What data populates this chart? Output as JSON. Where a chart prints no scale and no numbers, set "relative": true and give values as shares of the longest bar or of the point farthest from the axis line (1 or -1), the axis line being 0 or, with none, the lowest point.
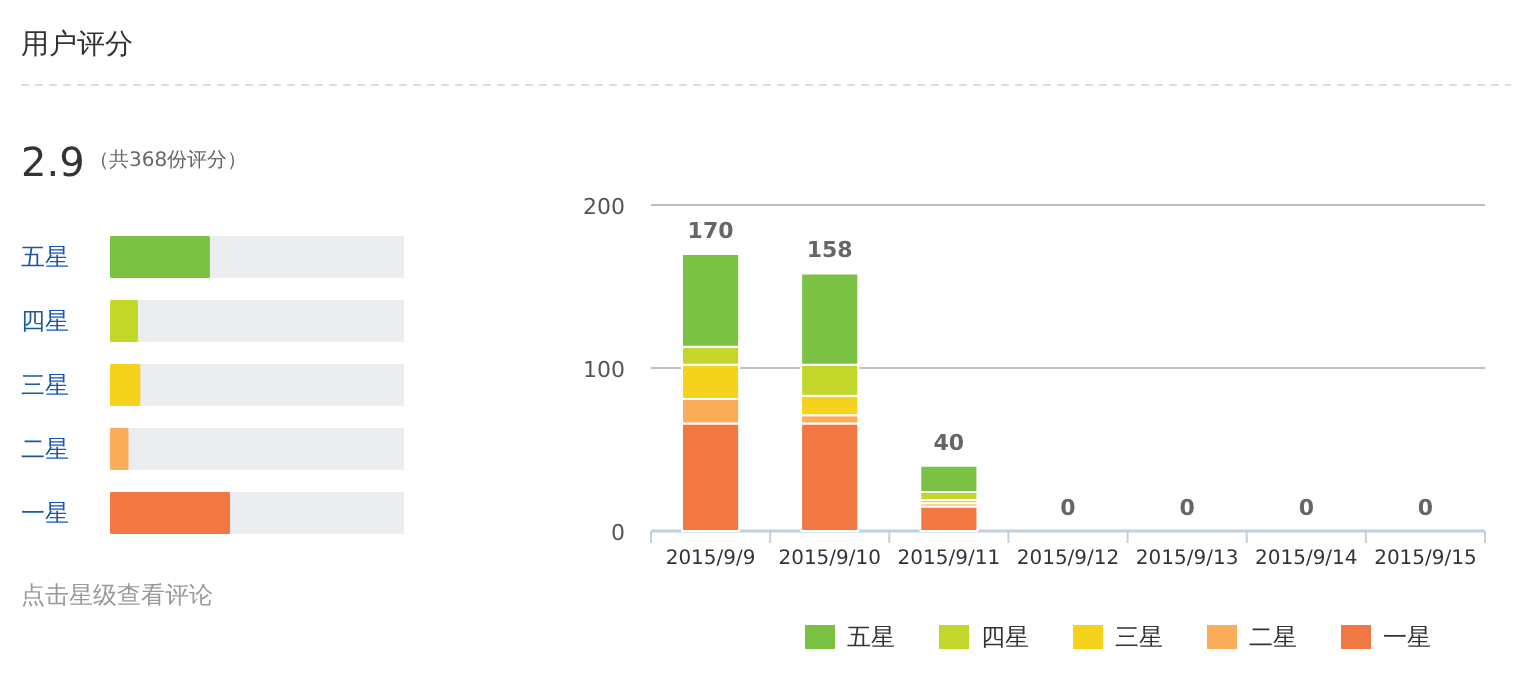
{
  "chart_data": [
    {
      "type": "other",
      "title": "用户评分"
    },
    {
      "type": "bar",
      "orientation": "horizontal",
      "relative": true,
      "title": "2.9",
      "subtitle": "（共368份评分）",
      "categories": [
        "五星",
        "四星",
        "三星",
        "二星",
        "一星"
      ],
      "values": [
        0.83,
        0.22,
        0.24,
        0.14,
        1
      ],
      "colors": [
        "#7bc143",
        "#c2d72a",
        "#f5d21c",
        "#fbad5a",
        "#f27843"
      ],
      "annotations": [
        "点击星级查看评论"
      ]
    },
    {
      "type": "bar",
      "stacked": true,
      "legend": "bottom",
      "grid": "y",
      "categories": [
        "2015/9/9",
        "2015/9/10",
        "2015/9/11",
        "2015/9/12",
        "2015/9/13",
        "2015/9/14",
        "2015/9/15"
      ],
      "ylim": [
        0,
        200
      ],
      "yticks": [
        0,
        100,
        200
      ],
      "series": [
        {
          "name": "一星",
          "color": "#f27843",
          "values": [
            66,
            66,
            15,
            0,
            0,
            0,
            0
          ]
        },
        {
          "name": "二星",
          "color": "#fbad5a",
          "values": [
            15,
            5,
            2,
            0,
            0,
            0,
            0
          ]
        },
        {
          "name": "三星",
          "color": "#f5d21c",
          "values": [
            21,
            12,
            2,
            0,
            0,
            0,
            0
          ]
        },
        {
          "name": "四星",
          "color": "#c2d72a",
          "values": [
            11,
            19,
            5,
            0,
            0,
            0,
            0
          ]
        },
        {
          "name": "五星",
          "color": "#7bc143",
          "values": [
            57,
            56,
            16,
            0,
            0,
            0,
            0
          ]
        }
      ],
      "totals": [
        "170",
        "158",
        "40",
        "0",
        "0",
        "0",
        "0"
      ]
    }
  ]
}
